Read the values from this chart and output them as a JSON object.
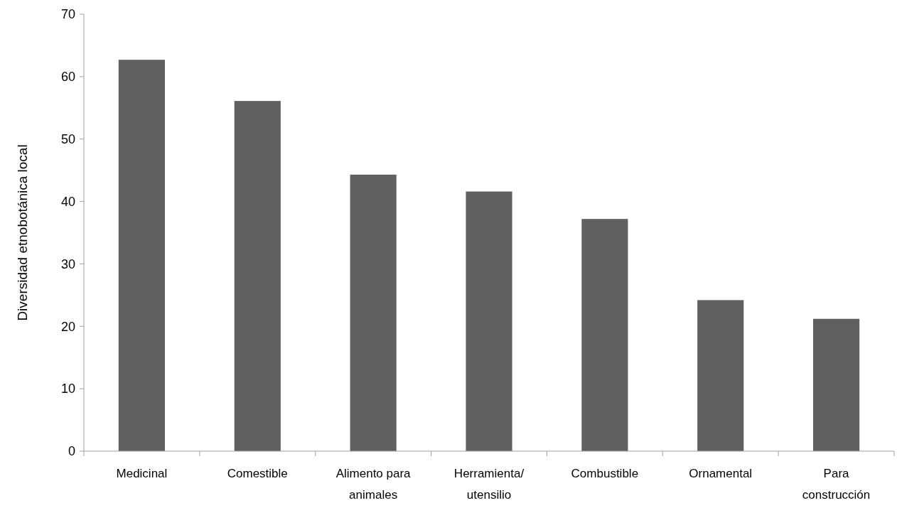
{
  "chart_data": {
    "type": "bar",
    "ylabel": "Diversidad etnobotánica local",
    "categories": [
      "Medicinal",
      "Comestible",
      "Alimento para animales",
      "Herramienta/ utensilio",
      "Combustible",
      "Ornamental",
      "Para construcción"
    ],
    "values": [
      62.7,
      56.1,
      44.3,
      41.6,
      37.2,
      24.2,
      21.2
    ],
    "color": "#606060",
    "ylim": [
      0,
      70
    ],
    "yticks": [
      0,
      10,
      20,
      30,
      40,
      50,
      60,
      70
    ],
    "grid": false
  }
}
